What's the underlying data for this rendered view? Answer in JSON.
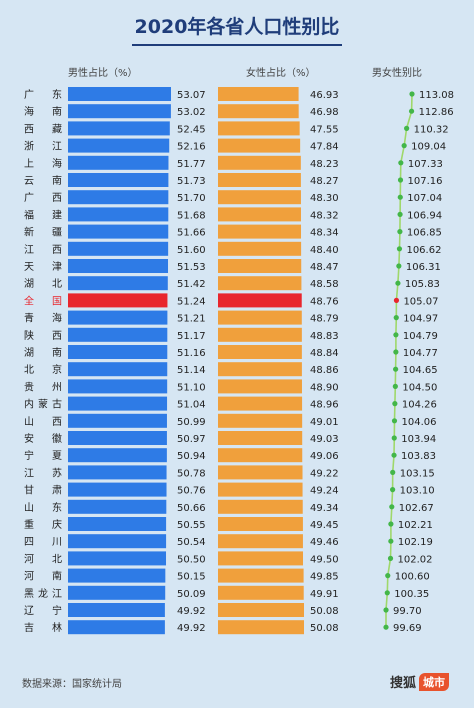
{
  "header": {
    "title": "2020年各省人口性别比",
    "male_label": "男性占比（%）",
    "female_label": "女性占比（%）",
    "ratio_label": "男女性别比"
  },
  "footer": {
    "source": "数据来源：国家统计局",
    "brand": "搜狐",
    "brand_badge": "城市"
  },
  "colors": {
    "male_bar": "#2e7be6",
    "female_bar": "#f0a03c",
    "highlight_bar": "#e8262d",
    "ratio_line": "#9fd86a",
    "ratio_point": "#43b649",
    "highlight_point": "#e8262d"
  },
  "chart_data": {
    "type": "bar",
    "highlight": "全国",
    "categories": [
      "广东",
      "海南",
      "西藏",
      "浙江",
      "上海",
      "云南",
      "广西",
      "福建",
      "新疆",
      "江西",
      "天津",
      "湖北",
      "全国",
      "青海",
      "陕西",
      "湖南",
      "北京",
      "贵州",
      "内蒙古",
      "山西",
      "安徽",
      "宁夏",
      "江苏",
      "甘肃",
      "山东",
      "重庆",
      "四川",
      "河北",
      "河南",
      "黑龙江",
      "辽宁",
      "吉林"
    ],
    "series": [
      {
        "name": "男性占比（%）",
        "values": [
          53.07,
          53.02,
          52.45,
          52.16,
          51.77,
          51.73,
          51.7,
          51.68,
          51.66,
          51.6,
          51.53,
          51.42,
          51.24,
          51.21,
          51.17,
          51.16,
          51.14,
          51.1,
          51.04,
          50.99,
          50.97,
          50.94,
          50.78,
          50.76,
          50.66,
          50.55,
          50.54,
          50.5,
          50.15,
          50.09,
          49.92,
          49.92
        ]
      },
      {
        "name": "女性占比（%）",
        "values": [
          46.93,
          46.98,
          47.55,
          47.84,
          48.23,
          48.27,
          48.3,
          48.32,
          48.34,
          48.4,
          48.47,
          48.58,
          48.76,
          48.79,
          48.83,
          48.84,
          48.86,
          48.9,
          48.96,
          49.01,
          49.03,
          49.06,
          49.22,
          49.24,
          49.34,
          49.45,
          49.46,
          49.5,
          49.85,
          49.91,
          50.08,
          50.08
        ]
      },
      {
        "name": "男女性别比",
        "values": [
          113.08,
          112.86,
          110.32,
          109.04,
          107.33,
          107.16,
          107.04,
          106.94,
          106.85,
          106.62,
          106.31,
          105.83,
          105.07,
          104.97,
          104.79,
          104.77,
          104.65,
          104.5,
          104.26,
          104.06,
          103.94,
          103.83,
          103.15,
          103.1,
          102.67,
          102.21,
          102.19,
          102.02,
          100.6,
          100.35,
          99.7,
          99.69
        ]
      }
    ],
    "labels": {
      "male": [
        "53.07",
        "53.02",
        "52.45",
        "52.16",
        "51.77",
        "51.73",
        "51.70",
        "51.68",
        "51.66",
        "51.60",
        "51.53",
        "51.42",
        "51.24",
        "51.21",
        "51.17",
        "51.16",
        "51.14",
        "51.10",
        "51.04",
        "50.99",
        "50.97",
        "50.94",
        "50.78",
        "50.76",
        "50.66",
        "50.55",
        "50.54",
        "50.50",
        "50.15",
        "50.09",
        "49.92",
        "49.92"
      ],
      "female": [
        "46.93",
        "46.98",
        "47.55",
        "47.84",
        "48.23",
        "48.27",
        "48.30",
        "48.32",
        "48.34",
        "48.40",
        "48.47",
        "48.58",
        "48.76",
        "48.79",
        "48.83",
        "48.84",
        "48.86",
        "48.90",
        "48.96",
        "49.01",
        "49.03",
        "49.06",
        "49.22",
        "49.24",
        "49.34",
        "49.45",
        "49.46",
        "49.50",
        "49.85",
        "49.91",
        "50.08",
        "50.08"
      ],
      "ratio": [
        "113.08",
        "112.86",
        "110.32",
        "109.04",
        "107.33",
        "107.16",
        "107.04",
        "106.94",
        "106.85",
        "106.62",
        "106.31",
        "105.83",
        "105.07",
        "104.97",
        "104.79",
        "104.77",
        "104.65",
        "104.50",
        "104.26",
        "104.06",
        "103.94",
        "103.83",
        "103.15",
        "103.10",
        "102.67",
        "102.21",
        "102.19",
        "102.02",
        "100.60",
        "100.35",
        "99.70",
        "99.69"
      ]
    },
    "grid": false,
    "legend": "none"
  }
}
